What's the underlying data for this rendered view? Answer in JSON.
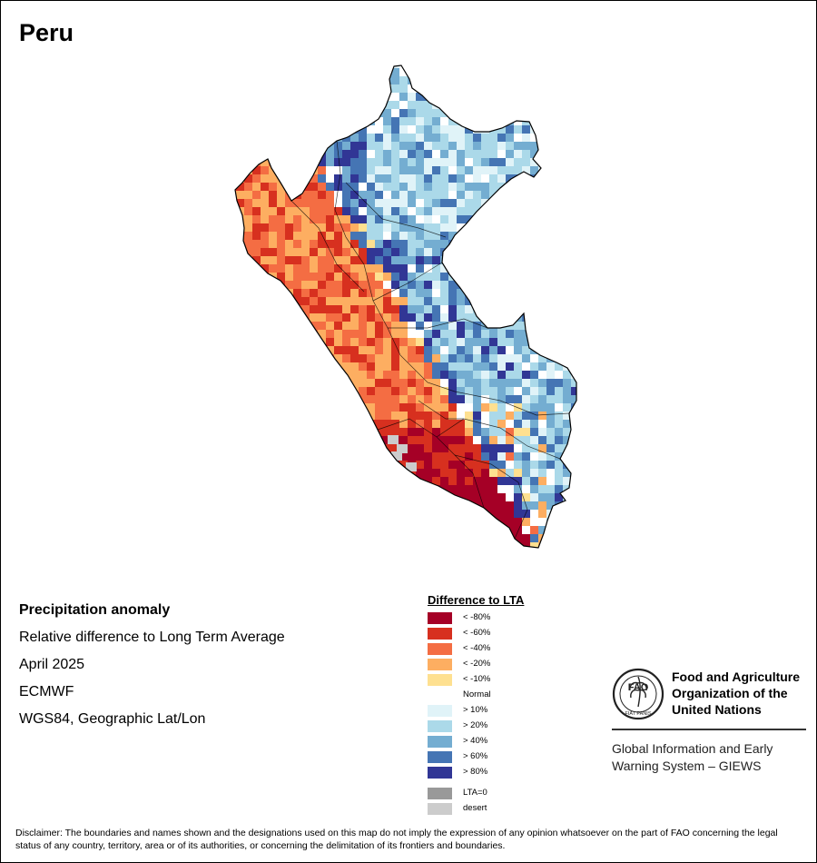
{
  "map": {
    "title": "Peru",
    "info_lines": [
      "Precipitation anomaly",
      "Relative difference to Long Term Average",
      "April 2025",
      "ECMWF",
      "WGS84, Geographic Lat/Lon"
    ],
    "legend_title": "Difference to LTA",
    "legend": [
      {
        "label": "< -80%",
        "color": "#a50026"
      },
      {
        "label": "< -60%",
        "color": "#d7301f"
      },
      {
        "label": "< -40%",
        "color": "#f46d43"
      },
      {
        "label": "< -20%",
        "color": "#fdae61"
      },
      {
        "label": "< -10%",
        "color": "#fee090"
      },
      {
        "label": "Normal",
        "color": "#ffffff"
      },
      {
        "label": "> 10%",
        "color": "#e0f3f8"
      },
      {
        "label": "> 20%",
        "color": "#abd9e9"
      },
      {
        "label": "> 40%",
        "color": "#74add1"
      },
      {
        "label": "> 60%",
        "color": "#4575b4"
      },
      {
        "label": "> 80%",
        "color": "#313695"
      },
      {
        "label": "LTA=0",
        "color": "#999999"
      },
      {
        "label": "desert",
        "color": "#cccccc"
      }
    ],
    "disclaimer": "Disclaimer: The boundaries and names shown and the designations used on this map do not imply the expression of any opinion whatsoever on the part of FAO concerning the legal status of any country, territory, area or of its authorities, or concerning the delimitation of its frontiers and boundaries."
  },
  "branding": {
    "fao_name": [
      "Food and Agriculture",
      "Organization of the",
      "United Nations"
    ],
    "logo_text": "FAO",
    "logo_motto": "FIAT PANIS",
    "giews_lines": [
      "Global Information and Early",
      "Warning System – GIEWS"
    ]
  }
}
